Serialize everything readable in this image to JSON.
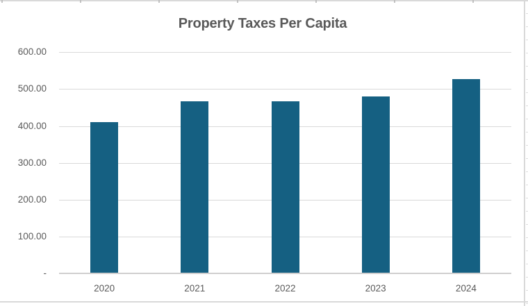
{
  "chart_data": {
    "type": "bar",
    "title": "Property Taxes Per Capita",
    "categories": [
      "2020",
      "2021",
      "2022",
      "2023",
      "2024"
    ],
    "values": [
      411,
      467,
      467,
      480,
      527
    ],
    "xlabel": "",
    "ylabel": "",
    "ylim": [
      0,
      600
    ],
    "ytick_step": 100,
    "ytick_labels": [
      "-",
      "100.00",
      "200.00",
      "300.00",
      "400.00",
      "500.00",
      "600.00"
    ],
    "grid": true,
    "legend": false,
    "bar_color": "#156082",
    "gridline_color": "#d9d9d9",
    "axis_line_color": "#d0cece",
    "text_color": "#595959",
    "border_color": "#d9d9d9"
  }
}
